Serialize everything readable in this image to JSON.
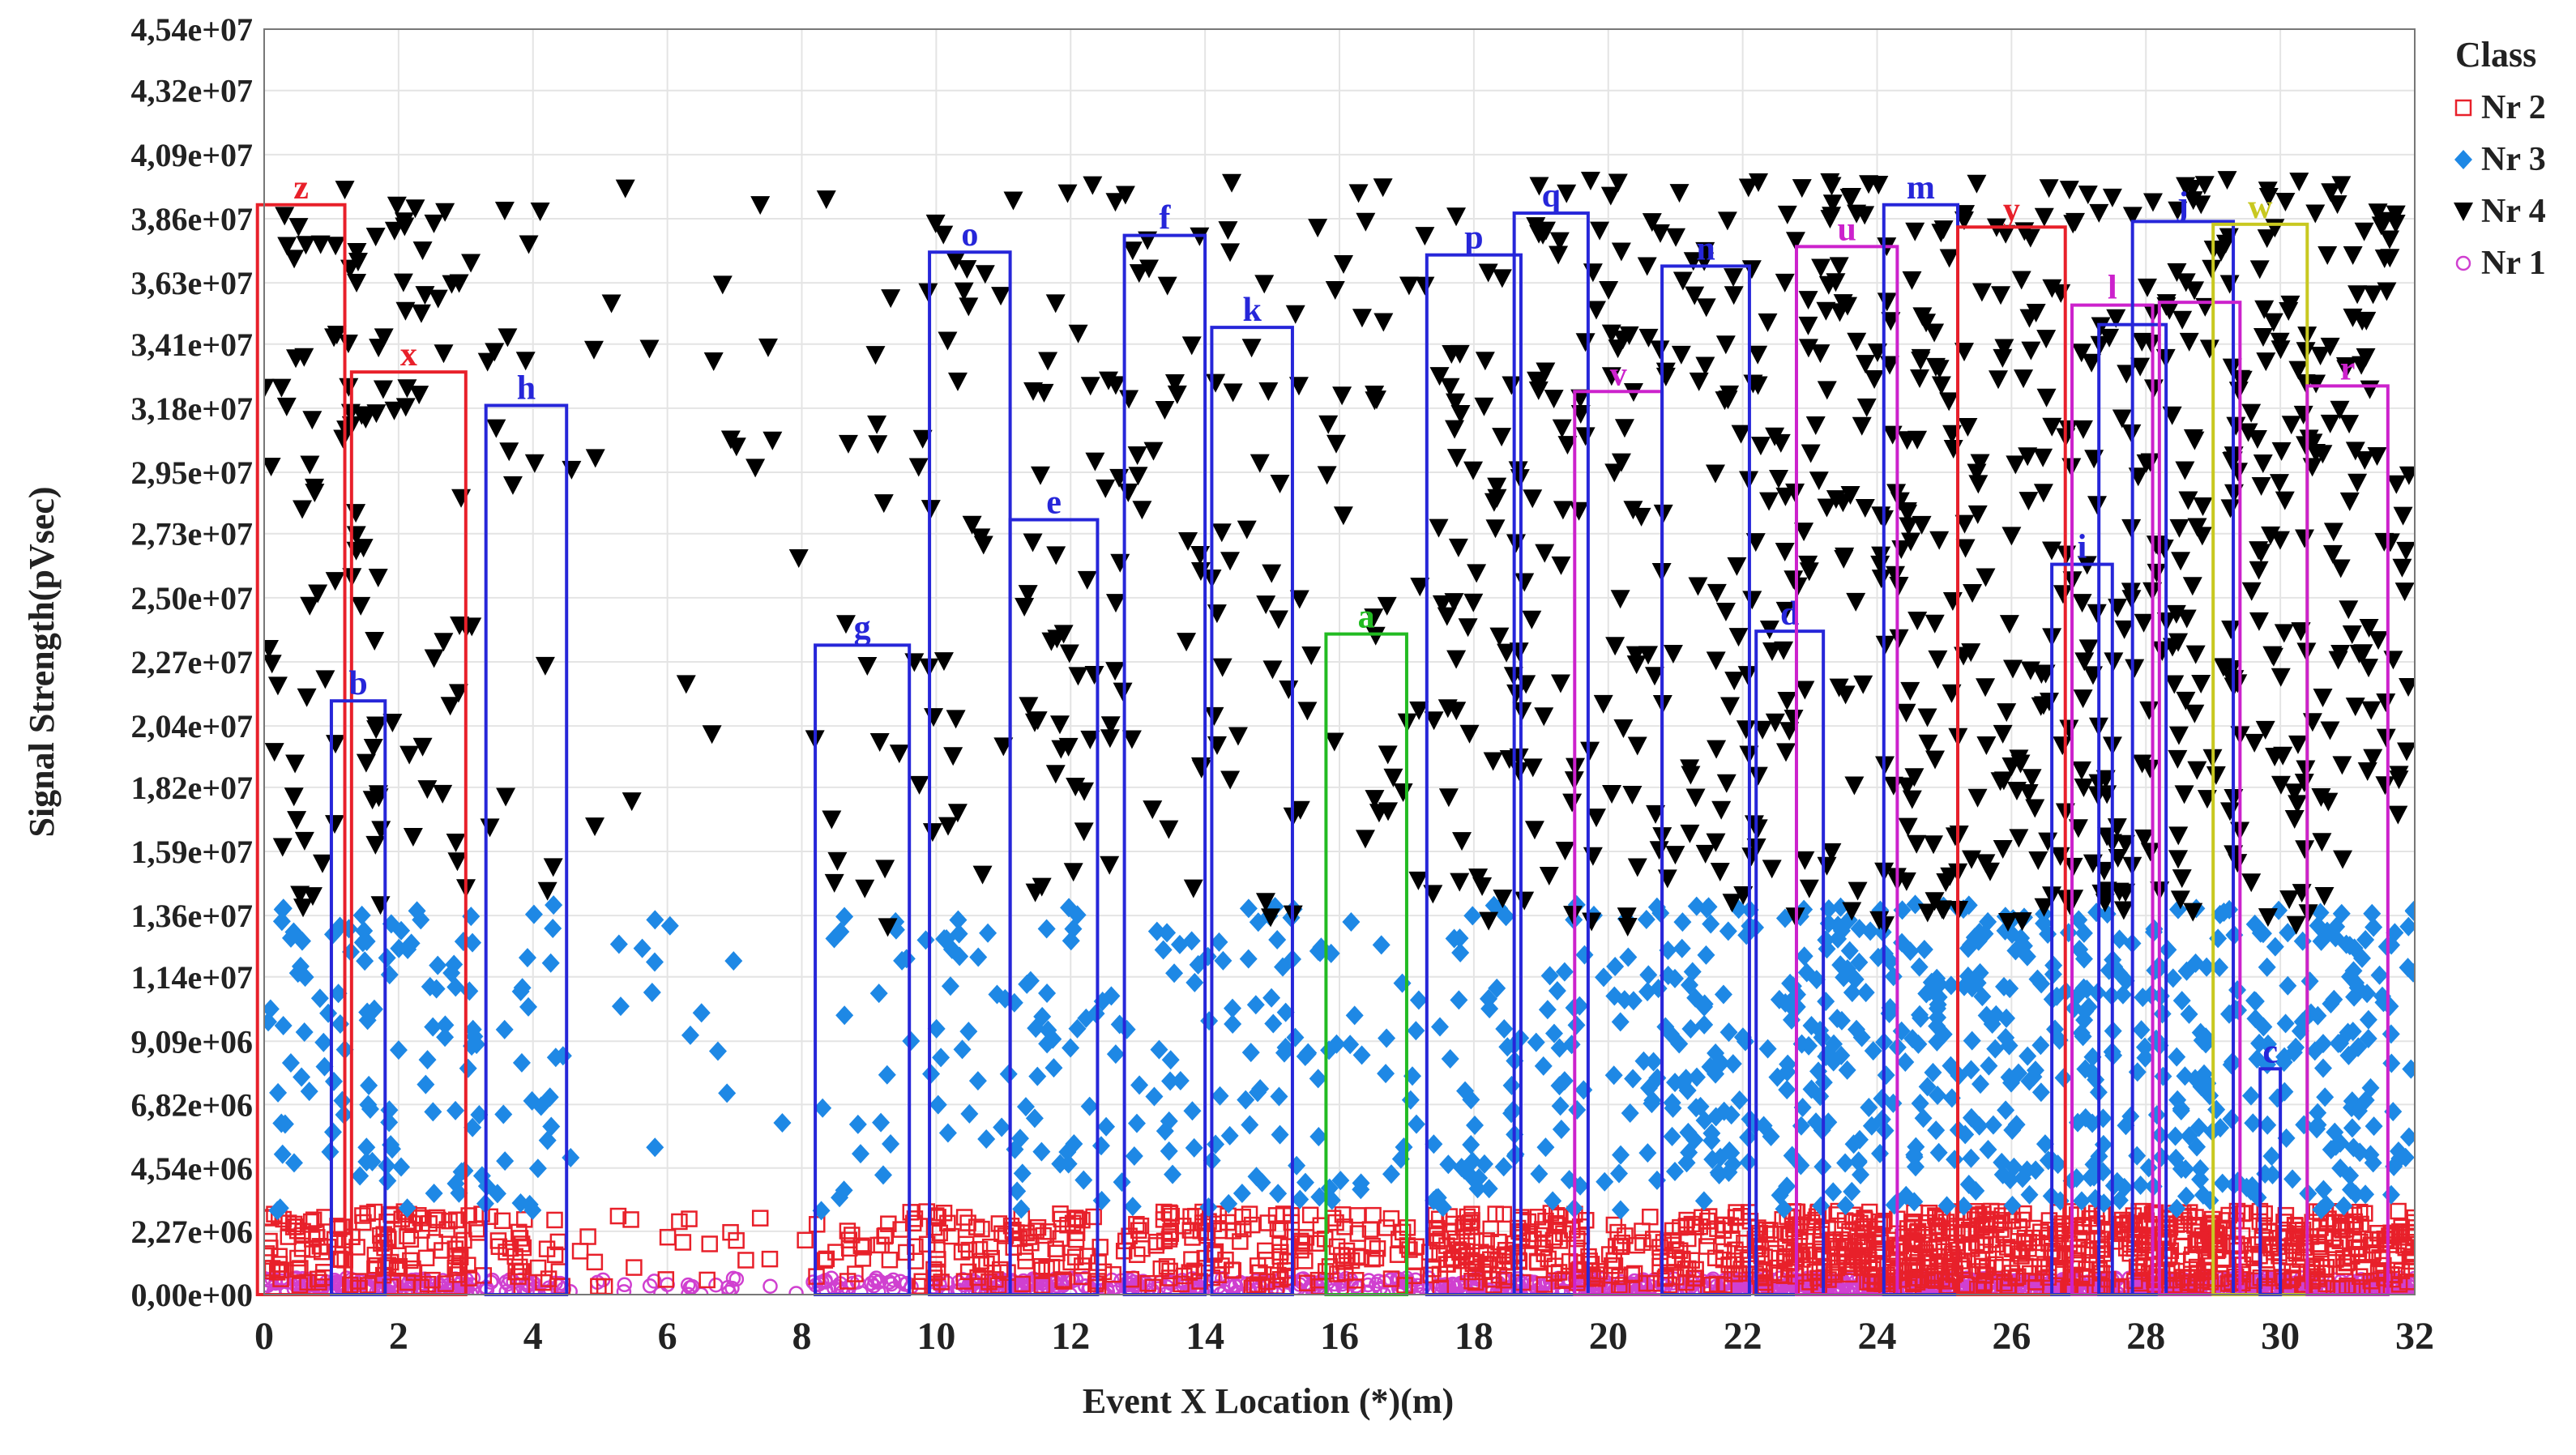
{
  "chart_data": {
    "type": "scatter",
    "title": "",
    "xlabel": "Event X Location (*)(m)",
    "ylabel": "Signal Strength(pVsec)",
    "xlim": [
      0,
      32
    ],
    "ylim": [
      0,
      45400000
    ],
    "grid": true,
    "legend_placement": "top-right",
    "legend_title": "Class",
    "x_ticks": [
      "0",
      "2",
      "4",
      "6",
      "8",
      "10",
      "12",
      "14",
      "16",
      "18",
      "20",
      "22",
      "24",
      "26",
      "28",
      "30",
      "32"
    ],
    "y_ticks": [
      {
        "value": 0,
        "label": "0,00e+00"
      },
      {
        "value": 2270000,
        "label": "2,27e+06"
      },
      {
        "value": 4540000,
        "label": "4,54e+06"
      },
      {
        "value": 6820000,
        "label": "6,82e+06"
      },
      {
        "value": 9090000,
        "label": "9,09e+06"
      },
      {
        "value": 11400000,
        "label": "1,14e+07"
      },
      {
        "value": 13600000,
        "label": "1,36e+07"
      },
      {
        "value": 15900000,
        "label": "1,59e+07"
      },
      {
        "value": 18200000,
        "label": "1,82e+07"
      },
      {
        "value": 20400000,
        "label": "2,04e+07"
      },
      {
        "value": 22700000,
        "label": "2,27e+07"
      },
      {
        "value": 25000000,
        "label": "2,50e+07"
      },
      {
        "value": 27300000,
        "label": "2,73e+07"
      },
      {
        "value": 29500000,
        "label": "2,95e+07"
      },
      {
        "value": 31800000,
        "label": "3,18e+07"
      },
      {
        "value": 34100000,
        "label": "3,41e+07"
      },
      {
        "value": 36300000,
        "label": "3,63e+07"
      },
      {
        "value": 38600000,
        "label": "3,86e+07"
      },
      {
        "value": 40900000,
        "label": "4,09e+07"
      },
      {
        "value": 43200000,
        "label": "4,32e+07"
      },
      {
        "value": 45400000,
        "label": "4,54e+07"
      }
    ],
    "series": [
      {
        "name": "Nr 2",
        "marker": "square-open",
        "color": "#e8202a",
        "value_range": [
          200000,
          3000000
        ],
        "x_extent": [
          0,
          32
        ],
        "approx_points": 1400
      },
      {
        "name": "Nr 3",
        "marker": "diamond",
        "color": "#1e88e5",
        "value_range": [
          3000000,
          14000000
        ],
        "x_extent": [
          0,
          32
        ],
        "approx_points": 1000
      },
      {
        "name": "Nr 4",
        "marker": "triangle-down",
        "color": "#000000",
        "value_range": [
          13000000,
          40000000
        ],
        "x_extent": [
          0,
          32
        ],
        "approx_points": 1100
      },
      {
        "name": "Nr 1",
        "marker": "circle-open",
        "color": "#d040d0",
        "value_range": [
          0,
          600000
        ],
        "x_extent": [
          0,
          32
        ],
        "approx_points": 1400
      }
    ],
    "density_profile": [
      {
        "x": [
          0,
          3.2
        ],
        "weight": 1.3
      },
      {
        "x": [
          3.2,
          4.5
        ],
        "weight": 0.7
      },
      {
        "x": [
          4.5,
          7.5
        ],
        "weight": 0.2
      },
      {
        "x": [
          7.5,
          8.2
        ],
        "weight": 0.1
      },
      {
        "x": [
          8.2,
          9.9
        ],
        "weight": 0.5
      },
      {
        "x": [
          9.9,
          17.5
        ],
        "weight": 0.9
      },
      {
        "x": [
          17.5,
          22.6
        ],
        "weight": 1.4
      },
      {
        "x": [
          22.6,
          32
        ],
        "weight": 2.2
      }
    ],
    "cluster_boxes": [
      {
        "label": "z",
        "color": "#e8202a",
        "x0": -0.1,
        "x1": 1.2,
        "y1": 39100000
      },
      {
        "label": "x",
        "color": "#e8202a",
        "x0": 1.3,
        "x1": 3.0,
        "y1": 33100000
      },
      {
        "label": "b",
        "color": "#2626d9",
        "x0": 1.0,
        "x1": 1.8,
        "y1": 21300000
      },
      {
        "label": "h",
        "color": "#2626d9",
        "x0": 3.3,
        "x1": 4.5,
        "y1": 31900000
      },
      {
        "label": "g",
        "color": "#2626d9",
        "x0": 8.2,
        "x1": 9.6,
        "y1": 23300000
      },
      {
        "label": "o",
        "color": "#2626d9",
        "x0": 9.9,
        "x1": 11.1,
        "y1": 37400000
      },
      {
        "label": "e",
        "color": "#2626d9",
        "x0": 11.1,
        "x1": 12.4,
        "y1": 27800000
      },
      {
        "label": "f",
        "color": "#2626d9",
        "x0": 12.8,
        "x1": 14.0,
        "y1": 38000000
      },
      {
        "label": "k",
        "color": "#2626d9",
        "x0": 14.1,
        "x1": 15.3,
        "y1": 34700000
      },
      {
        "label": "a",
        "color": "#22bb22",
        "x0": 15.8,
        "x1": 17.0,
        "y1": 23700000
      },
      {
        "label": "p",
        "color": "#2626d9",
        "x0": 17.3,
        "x1": 18.7,
        "y1": 37300000
      },
      {
        "label": "q",
        "color": "#2626d9",
        "x0": 18.6,
        "x1": 19.7,
        "y1": 38800000
      },
      {
        "label": "v",
        "color": "#cc22cc",
        "x0": 19.5,
        "x1": 20.8,
        "y1": 32400000
      },
      {
        "label": "n",
        "color": "#2626d9",
        "x0": 20.8,
        "x1": 22.1,
        "y1": 36900000
      },
      {
        "label": "d",
        "color": "#2626d9",
        "x0": 22.2,
        "x1": 23.2,
        "y1": 23800000
      },
      {
        "label": "u",
        "color": "#cc22cc",
        "x0": 22.8,
        "x1": 24.3,
        "y1": 37600000
      },
      {
        "label": "m",
        "color": "#2626d9",
        "x0": 24.1,
        "x1": 25.2,
        "y1": 39100000
      },
      {
        "label": "y",
        "color": "#e8202a",
        "x0": 25.2,
        "x1": 26.8,
        "y1": 38300000
      },
      {
        "label": "i",
        "color": "#2626d9",
        "x0": 26.6,
        "x1": 27.5,
        "y1": 26200000
      },
      {
        "label": "l",
        "color": "#cc22cc",
        "x0": 26.9,
        "x1": 28.1,
        "y1": 35500000
      },
      {
        "label": "",
        "color": "#2626d9",
        "x0": 27.3,
        "x1": 28.3,
        "y1": 34800000
      },
      {
        "label": "j",
        "color": "#2626d9",
        "x0": 27.8,
        "x1": 29.3,
        "y1": 38500000
      },
      {
        "label": "",
        "color": "#cc22cc",
        "x0": 28.2,
        "x1": 29.4,
        "y1": 35600000
      },
      {
        "label": "w",
        "color": "#c8c820",
        "x0": 29.0,
        "x1": 30.4,
        "y1": 38400000
      },
      {
        "label": "c",
        "color": "#2626d9",
        "x0": 29.7,
        "x1": 30.0,
        "y1": 8100000
      },
      {
        "label": "r",
        "color": "#cc22cc",
        "x0": 30.4,
        "x1": 31.6,
        "y1": 32600000
      }
    ]
  }
}
